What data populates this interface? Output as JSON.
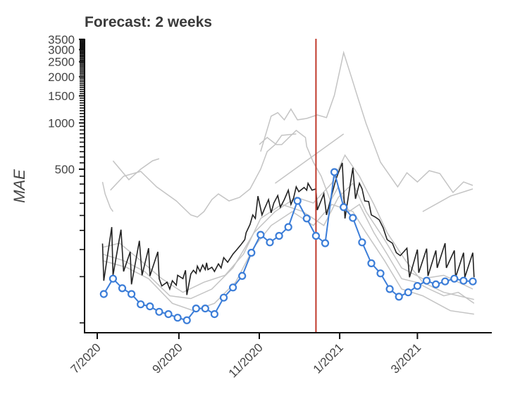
{
  "chart_data": {
    "type": "line",
    "title": "Forecast: 2 weeks",
    "xlabel": "",
    "ylabel": "MAE",
    "x_units": "days since 2020-07-01",
    "x_origin": "2020-07-01",
    "xlim": [
      -10,
      300
    ],
    "ylim": [
      43,
      3500
    ],
    "yscale": "log",
    "grid": false,
    "x_ticks": [
      {
        "value": 0,
        "label": "7/2020"
      },
      {
        "value": 62,
        "label": "9/2020"
      },
      {
        "value": 123,
        "label": "11/2020"
      },
      {
        "value": 184,
        "label": "1/2021"
      },
      {
        "value": 243,
        "label": "3/2021"
      }
    ],
    "y_ticks_labeled": [
      {
        "value": 500,
        "label": "500"
      },
      {
        "value": 1000,
        "label": "1000"
      },
      {
        "value": 1500,
        "label": "1500"
      },
      {
        "value": 2000,
        "label": "2000"
      },
      {
        "value": 2500,
        "label": "2500"
      },
      {
        "value": 3000,
        "label": "3000"
      },
      {
        "value": 3500,
        "label": "3500"
      }
    ],
    "y_minor_tick_step": 50,
    "forecast_date_line": {
      "x": 166,
      "color": "#c0392b"
    },
    "colors": {
      "highlight": "#3b7dd8",
      "reference": "#222222",
      "others": "#c4c4c4",
      "axis": "#111111"
    },
    "series": [
      {
        "name": "highlighted model",
        "style": "line-with-open-circles",
        "x_start": 5,
        "x_step": 7,
        "values": [
          77,
          97,
          84,
          77,
          66,
          64,
          59,
          57,
          54,
          52,
          62,
          62,
          57,
          73,
          85,
          101,
          143,
          187,
          167,
          184,
          210,
          311,
          239,
          184,
          165,
          479,
          283,
          241,
          167,
          122,
          105,
          83,
          74,
          79,
          87,
          94,
          89,
          93,
          97,
          94,
          93
        ]
      },
      {
        "name": "reference model",
        "style": "line",
        "points": [
          [
            4,
            164
          ],
          [
            5,
            94
          ],
          [
            11,
            210
          ],
          [
            12,
            102
          ],
          [
            18,
            202
          ],
          [
            20,
            108
          ],
          [
            25,
            145
          ],
          [
            26,
            89
          ],
          [
            32,
            171
          ],
          [
            34,
            102
          ],
          [
            39,
            153
          ],
          [
            40,
            101
          ],
          [
            46,
            145
          ],
          [
            47,
            97
          ],
          [
            49,
            87
          ],
          [
            53,
            92
          ],
          [
            55,
            83
          ],
          [
            57,
            94
          ],
          [
            60,
            88
          ],
          [
            61,
            102
          ],
          [
            65,
            97
          ],
          [
            67,
            110
          ],
          [
            68,
            76
          ],
          [
            71,
            104
          ],
          [
            73,
            110
          ],
          [
            75,
            105
          ],
          [
            76,
            117
          ],
          [
            78,
            108
          ],
          [
            80,
            119
          ],
          [
            82,
            111
          ],
          [
            83,
            123
          ],
          [
            84,
            111
          ],
          [
            87,
            115
          ],
          [
            89,
            108
          ],
          [
            92,
            121
          ],
          [
            94,
            114
          ],
          [
            96,
            133
          ],
          [
            99,
            124
          ],
          [
            103,
            140
          ],
          [
            106,
            150
          ],
          [
            109,
            161
          ],
          [
            112,
            174
          ],
          [
            113,
            193
          ],
          [
            116,
            219
          ],
          [
            118,
            252
          ],
          [
            120,
            239
          ],
          [
            122,
            334
          ],
          [
            125,
            252
          ],
          [
            127,
            277
          ],
          [
            130,
            317
          ],
          [
            132,
            260
          ],
          [
            134,
            301
          ],
          [
            137,
            337
          ],
          [
            139,
            283
          ],
          [
            142,
            317
          ],
          [
            145,
            365
          ],
          [
            147,
            295
          ],
          [
            149,
            324
          ],
          [
            151,
            384
          ],
          [
            153,
            357
          ],
          [
            157,
            380
          ],
          [
            159,
            365
          ],
          [
            160,
            405
          ],
          [
            163,
            365
          ],
          [
            166,
            372
          ],
          [
            167,
            271
          ],
          [
            172,
            346
          ],
          [
            174,
            252
          ],
          [
            181,
            426
          ],
          [
            183,
            474
          ],
          [
            186,
            550
          ],
          [
            188,
            239
          ],
          [
            194,
            511
          ],
          [
            196,
            321
          ],
          [
            199,
            405
          ],
          [
            201,
            372
          ],
          [
            203,
            311
          ],
          [
            206,
            308
          ],
          [
            208,
            252
          ],
          [
            211,
            244
          ],
          [
            214,
            234
          ],
          [
            217,
            208
          ],
          [
            220,
            174
          ],
          [
            224,
            165
          ],
          [
            227,
            143
          ],
          [
            230,
            137
          ],
          [
            235,
            153
          ],
          [
            237,
            99
          ],
          [
            243,
            150
          ],
          [
            244,
            106
          ],
          [
            250,
            152
          ],
          [
            251,
            101
          ],
          [
            257,
            148
          ],
          [
            258,
            114
          ],
          [
            264,
            165
          ],
          [
            265,
            114
          ],
          [
            271,
            148
          ],
          [
            272,
            99
          ],
          [
            278,
            143
          ],
          [
            279,
            99
          ],
          [
            285,
            143
          ],
          [
            286,
            99
          ]
        ]
      }
    ],
    "other_models": [
      {
        "name": "model-1",
        "points": [
          [
            12,
            567
          ],
          [
            24,
            427
          ],
          [
            33,
            500
          ],
          [
            42,
            567
          ],
          [
            47,
            585
          ]
        ]
      },
      {
        "name": "model-2",
        "points": [
          [
            4,
            413
          ],
          [
            6,
            345
          ],
          [
            10,
            280
          ],
          [
            12,
            265
          ]
        ]
      },
      {
        "name": "model-3",
        "points": [
          [
            10,
            365
          ],
          [
            20,
            450
          ],
          [
            33,
            484
          ],
          [
            45,
            384
          ],
          [
            60,
            311
          ],
          [
            71,
            252
          ],
          [
            76,
            244
          ],
          [
            81,
            265
          ],
          [
            87,
            317
          ],
          [
            92,
            345
          ],
          [
            100,
            311
          ],
          [
            108,
            328
          ],
          [
            116,
            372
          ],
          [
            124,
            500
          ],
          [
            129,
            651
          ],
          [
            135,
            723
          ],
          [
            140,
            830
          ],
          [
            151,
            848
          ]
        ]
      },
      {
        "name": "model-4",
        "points": [
          [
            124,
            651
          ],
          [
            132,
            1106
          ],
          [
            137,
            1167
          ],
          [
            142,
            1047
          ],
          [
            147,
            1231
          ],
          [
            152,
            1047
          ],
          [
            159,
            1070
          ],
          [
            167,
            1128
          ],
          [
            174,
            1083
          ],
          [
            180,
            1516
          ],
          [
            187,
            2866
          ],
          [
            193,
            1977
          ],
          [
            198,
            1438
          ],
          [
            204,
            992
          ],
          [
            210,
            723
          ],
          [
            215,
            555
          ],
          [
            228,
            384
          ],
          [
            235,
            474
          ],
          [
            243,
            413
          ],
          [
            252,
            489
          ],
          [
            260,
            469
          ],
          [
            270,
            353
          ],
          [
            278,
            413
          ],
          [
            285,
            392
          ]
        ]
      },
      {
        "name": "model-5",
        "points": [
          [
            123,
            723
          ],
          [
            129,
            804
          ],
          [
            136,
            723
          ],
          [
            140,
            723
          ],
          [
            151,
            894
          ],
          [
            158,
            804
          ],
          [
            159,
            702
          ],
          [
            164,
            555
          ],
          [
            170,
            450
          ],
          [
            177,
            311
          ],
          [
            183,
            384
          ],
          [
            191,
            265
          ],
          [
            199,
            295
          ],
          [
            210,
            193
          ],
          [
            220,
            140
          ],
          [
            231,
            97
          ],
          [
            242,
            92
          ],
          [
            252,
            83
          ],
          [
            263,
            75
          ],
          [
            274,
            79
          ],
          [
            286,
            67
          ]
        ]
      },
      {
        "name": "model-6",
        "points": [
          [
            135,
            405
          ],
          [
            187,
            848
          ]
        ]
      },
      {
        "name": "model-7",
        "points": [
          [
            247,
            265
          ],
          [
            268,
            334
          ],
          [
            285,
            372
          ]
        ]
      },
      {
        "name": "model-8",
        "points": [
          [
            4,
            155
          ],
          [
            17,
            165
          ],
          [
            33,
            127
          ],
          [
            49,
            97
          ],
          [
            65,
            79
          ],
          [
            81,
            92
          ],
          [
            97,
            102
          ],
          [
            111,
            140
          ],
          [
            124,
            239
          ],
          [
            140,
            295
          ],
          [
            156,
            265
          ],
          [
            172,
            215
          ],
          [
            183,
            328
          ],
          [
            194,
            405
          ],
          [
            204,
            265
          ],
          [
            218,
            174
          ],
          [
            231,
            114
          ],
          [
            247,
            97
          ],
          [
            263,
            102
          ],
          [
            285,
            83
          ]
        ]
      },
      {
        "name": "model-9",
        "points": [
          [
            4,
            140
          ],
          [
            20,
            127
          ],
          [
            36,
            108
          ],
          [
            55,
            75
          ],
          [
            71,
            72
          ],
          [
            87,
            83
          ],
          [
            103,
            114
          ],
          [
            119,
            193
          ],
          [
            135,
            265
          ],
          [
            151,
            328
          ],
          [
            164,
            301
          ],
          [
            178,
            405
          ],
          [
            188,
            617
          ],
          [
            199,
            450
          ],
          [
            210,
            295
          ],
          [
            220,
            193
          ],
          [
            234,
            127
          ],
          [
            247,
            92
          ],
          [
            263,
            79
          ],
          [
            286,
            71
          ]
        ]
      },
      {
        "name": "model-10",
        "points": [
          [
            4,
            127
          ],
          [
            22,
            115
          ],
          [
            39,
            97
          ],
          [
            57,
            67
          ],
          [
            73,
            60
          ],
          [
            89,
            67
          ],
          [
            105,
            92
          ],
          [
            119,
            156
          ],
          [
            132,
            215
          ],
          [
            148,
            265
          ],
          [
            164,
            215
          ],
          [
            178,
            295
          ],
          [
            194,
            265
          ],
          [
            204,
            193
          ],
          [
            218,
            127
          ],
          [
            231,
            83
          ],
          [
            247,
            75
          ],
          [
            268,
            60
          ],
          [
            286,
            57
          ]
        ]
      }
    ]
  }
}
